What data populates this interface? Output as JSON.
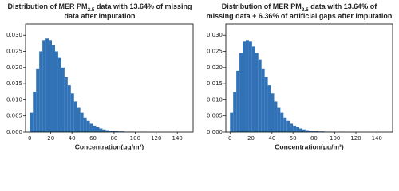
{
  "chart_data": [
    {
      "type": "histogram",
      "title": [
        [
          "Distribution of MER PM",
          "2.5",
          " data with 13.64% of missing"
        ],
        [
          "data after imputation"
        ]
      ],
      "xlabel": "Concentration(μg/m³)",
      "color": "#3172b6",
      "bins": [
        0,
        3,
        6,
        9,
        12,
        15,
        18,
        21,
        24,
        27,
        30,
        33,
        36,
        39,
        42,
        45,
        48,
        51,
        54,
        57,
        60,
        63,
        66,
        69,
        72,
        75,
        78,
        81,
        84,
        87,
        90,
        93,
        96,
        99,
        102,
        105,
        108,
        111,
        114,
        117,
        120,
        123,
        126
      ],
      "values": [
        0.006,
        0.0125,
        0.0195,
        0.025,
        0.0285,
        0.029,
        0.0285,
        0.027,
        0.025,
        0.023,
        0.02,
        0.017,
        0.0145,
        0.012,
        0.0095,
        0.0075,
        0.006,
        0.0045,
        0.0035,
        0.0026,
        0.002,
        0.0015,
        0.0011,
        0.0008,
        0.0006,
        0.0005,
        0.0003,
        0.0003,
        0.0002,
        0.0002,
        0.0001,
        0.0001,
        0.0001,
        5e-05,
        5e-05,
        5e-05,
        3e-05,
        3e-05,
        3e-05,
        2e-05,
        2e-05,
        2e-05
      ],
      "xlim": [
        -4,
        155
      ],
      "ylim": [
        0,
        0.0335
      ],
      "xticks": [
        0,
        20,
        40,
        60,
        80,
        100,
        120,
        140
      ],
      "yticks": [
        {
          "value": 0,
          "label": "0.000"
        },
        0.005,
        {
          "value": 0.01,
          "label": "0.010"
        },
        0.015,
        {
          "value": 0.02,
          "label": "0.020"
        },
        0.025,
        {
          "value": 0.03,
          "label": "0.030"
        }
      ]
    },
    {
      "type": "histogram",
      "title": [
        [
          "Distribution of MER PM",
          "2.5",
          " data with 13.64% of"
        ],
        [
          "missing data + 6.36% of artificial gaps after imputation"
        ]
      ],
      "xlabel": "Concentration(μg/m³)",
      "color": "#3172b6",
      "bins": [
        0,
        3,
        6,
        9,
        12,
        15,
        18,
        21,
        24,
        27,
        30,
        33,
        36,
        39,
        42,
        45,
        48,
        51,
        54,
        57,
        60,
        63,
        66,
        69,
        72,
        75,
        78,
        81,
        84,
        87,
        90,
        93,
        96,
        99,
        102,
        105,
        108,
        111,
        114,
        117,
        120,
        123,
        126
      ],
      "values": [
        0.006,
        0.0125,
        0.019,
        0.0245,
        0.028,
        0.0285,
        0.028,
        0.0265,
        0.0245,
        0.0225,
        0.0195,
        0.017,
        0.0145,
        0.012,
        0.0095,
        0.0075,
        0.006,
        0.0045,
        0.0035,
        0.0026,
        0.002,
        0.0015,
        0.0011,
        0.0008,
        0.0006,
        0.0005,
        0.0003,
        0.0003,
        0.0002,
        0.0002,
        0.0001,
        0.0001,
        0.0001,
        5e-05,
        5e-05,
        5e-05,
        3e-05,
        3e-05,
        3e-05,
        2e-05,
        2e-05,
        2e-05
      ],
      "xlim": [
        -4,
        155
      ],
      "ylim": [
        0,
        0.0335
      ],
      "xticks": [
        0,
        20,
        40,
        60,
        80,
        100,
        120,
        140
      ],
      "yticks": [
        {
          "value": 0,
          "label": "0.000"
        },
        0.005,
        {
          "value": 0.01,
          "label": "0.010"
        },
        0.015,
        {
          "value": 0.02,
          "label": "0.020"
        },
        0.025,
        {
          "value": 0.03,
          "label": "0.030"
        }
      ]
    }
  ]
}
